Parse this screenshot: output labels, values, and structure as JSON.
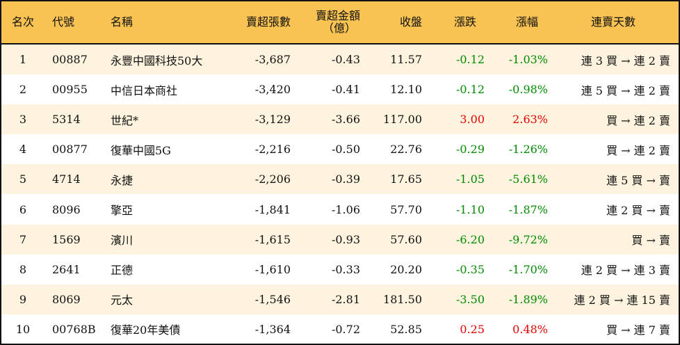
{
  "headers": {
    "rank": "名次",
    "code": "代號",
    "name": "名稱",
    "net_sell_lots": "賣超張數",
    "net_sell_amount": "賣超金額",
    "net_sell_amount_unit": "（億）",
    "close": "收盤",
    "change": "漲跌",
    "change_pct": "漲幅",
    "streak": "連賣天數"
  },
  "colors": {
    "header_bg": "#F8C352",
    "stripe_bg": "#FDF3DE",
    "up": "#E50000",
    "down": "#008A00"
  },
  "rows": [
    {
      "rank": "1",
      "code": "00887",
      "name": "永豐中國科技50大",
      "lots": "-3,687",
      "amount": "-0.43",
      "close": "11.57",
      "change": "-0.12",
      "pct": "-1.03%",
      "streak": "連 3 買 → 連 2 賣"
    },
    {
      "rank": "2",
      "code": "00955",
      "name": "中信日本商社",
      "lots": "-3,420",
      "amount": "-0.41",
      "close": "12.10",
      "change": "-0.12",
      "pct": "-0.98%",
      "streak": "連 5 買 → 連 2 賣"
    },
    {
      "rank": "3",
      "code": "5314",
      "name": "世紀*",
      "lots": "-3,129",
      "amount": "-3.66",
      "close": "117.00",
      "change": "3.00",
      "pct": "2.63%",
      "streak": "買 → 連 2 賣"
    },
    {
      "rank": "4",
      "code": "00877",
      "name": "復華中國5G",
      "lots": "-2,216",
      "amount": "-0.50",
      "close": "22.76",
      "change": "-0.29",
      "pct": "-1.26%",
      "streak": "買 → 連 2 賣"
    },
    {
      "rank": "5",
      "code": "4714",
      "name": "永捷",
      "lots": "-2,206",
      "amount": "-0.39",
      "close": "17.65",
      "change": "-1.05",
      "pct": "-5.61%",
      "streak": "連 5 買 → 賣"
    },
    {
      "rank": "6",
      "code": "8096",
      "name": "擎亞",
      "lots": "-1,841",
      "amount": "-1.06",
      "close": "57.70",
      "change": "-1.10",
      "pct": "-1.87%",
      "streak": "連 2 買 → 賣"
    },
    {
      "rank": "7",
      "code": "1569",
      "name": "濱川",
      "lots": "-1,615",
      "amount": "-0.93",
      "close": "57.60",
      "change": "-6.20",
      "pct": "-9.72%",
      "streak": "買 → 賣"
    },
    {
      "rank": "8",
      "code": "2641",
      "name": "正德",
      "lots": "-1,610",
      "amount": "-0.33",
      "close": "20.20",
      "change": "-0.35",
      "pct": "-1.70%",
      "streak": "連 2 買 → 連 3 賣"
    },
    {
      "rank": "9",
      "code": "8069",
      "name": "元太",
      "lots": "-1,546",
      "amount": "-2.81",
      "close": "181.50",
      "change": "-3.50",
      "pct": "-1.89%",
      "streak": "連 2 買 → 連 15 賣"
    },
    {
      "rank": "10",
      "code": "00768B",
      "name": "復華20年美債",
      "lots": "-1,364",
      "amount": "-0.72",
      "close": "52.85",
      "change": "0.25",
      "pct": "0.48%",
      "streak": "買 → 連 7 賣"
    }
  ]
}
